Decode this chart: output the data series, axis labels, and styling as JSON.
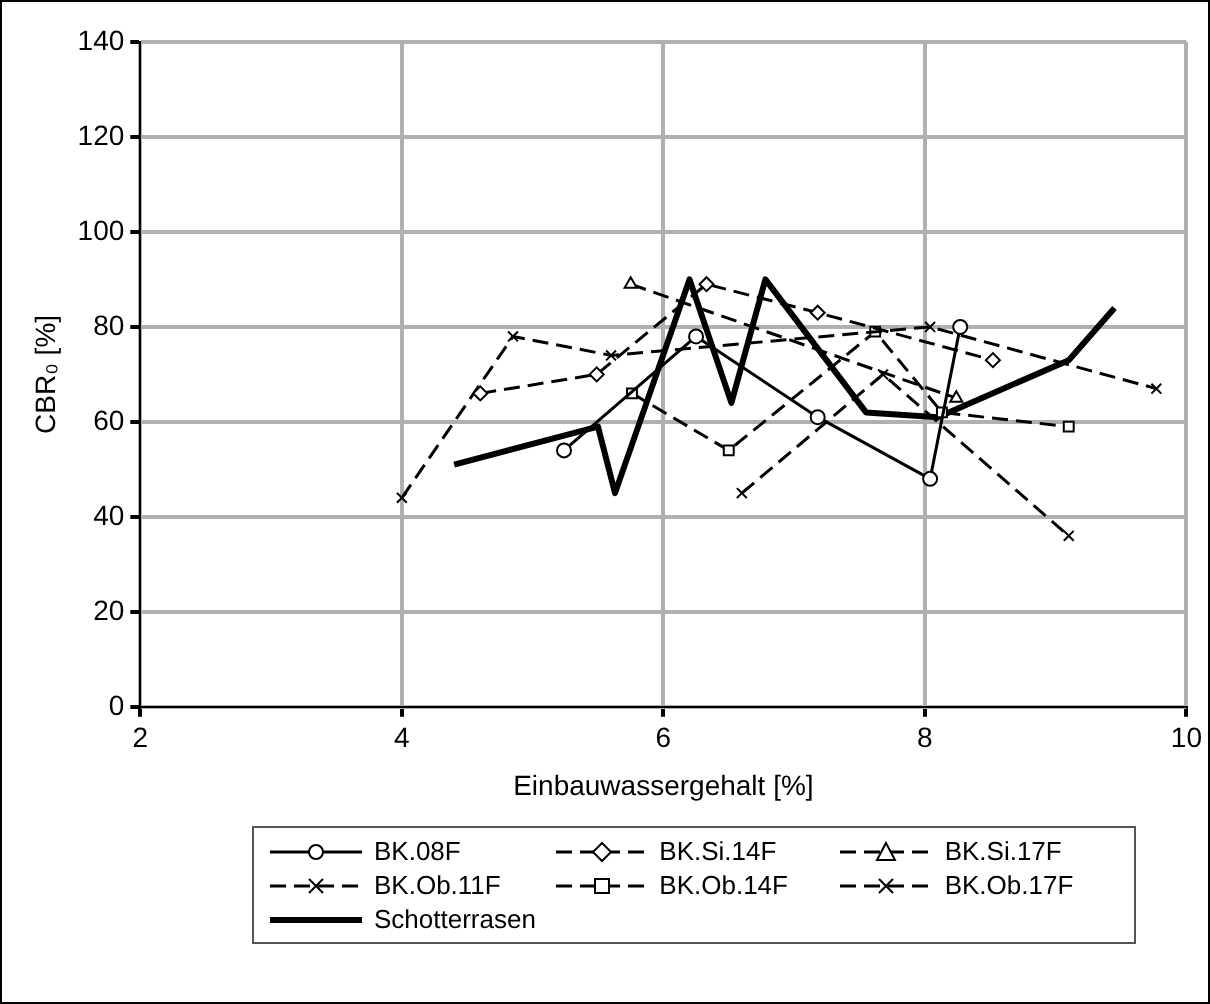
{
  "chart_data": {
    "type": "line",
    "xlabel": "Einbauwassergehalt [%]",
    "ylabel": "CBR₀ [%]",
    "xlim": [
      2,
      10
    ],
    "xticks": [
      2,
      4,
      6,
      8,
      10
    ],
    "ylim": [
      0,
      140
    ],
    "yticks": [
      0,
      20,
      40,
      60,
      80,
      100,
      120,
      140
    ],
    "grid": true,
    "legend": "bottom",
    "series": [
      {
        "name": "BK.08F",
        "color": "#000000",
        "marker": "circle",
        "line_style": "solid",
        "x": [
          5.24,
          6.25,
          7.18,
          8.04,
          8.27
        ],
        "values": [
          54,
          78,
          61,
          48,
          80
        ]
      },
      {
        "name": "BK.Si.14F",
        "color": "#000000",
        "marker": "diamond",
        "line_style": "dashed",
        "x": [
          4.6,
          5.49,
          6.33,
          7.18,
          8.52
        ],
        "values": [
          66,
          70,
          89,
          83,
          73
        ]
      },
      {
        "name": "BK.Si.17F",
        "color": "#000000",
        "marker": "triangle",
        "line_style": "dashed",
        "x": [
          5.75,
          8.24
        ],
        "values": [
          89,
          65
        ]
      },
      {
        "name": "BK.Ob.11F",
        "color": "#000000",
        "marker": "cross",
        "line_style": "dashed",
        "x": [
          4.0,
          4.85,
          5.6,
          8.04,
          9.77
        ],
        "values": [
          44,
          78,
          74,
          80,
          67
        ]
      },
      {
        "name": "BK.Ob.14F",
        "color": "#000000",
        "marker": "square",
        "line_style": "dashed",
        "x": [
          5.76,
          6.5,
          7.62,
          8.13,
          9.1
        ],
        "values": [
          66,
          54,
          79,
          62,
          59
        ]
      },
      {
        "name": "BK.Ob.17F",
        "color": "#000000",
        "marker": "cross",
        "line_style": "dashed",
        "x": [
          6.6,
          7.68,
          9.1
        ],
        "values": [
          45,
          70,
          36
        ]
      },
      {
        "name": "Schotterrasen",
        "color": "#000000",
        "marker": "none",
        "line_style": "solid",
        "x": [
          4.4,
          5.5,
          5.63,
          6.2,
          6.52,
          6.78,
          7.55,
          8.1,
          9.1,
          9.45
        ],
        "values": [
          51,
          59,
          45,
          90,
          64,
          90,
          62,
          61,
          73,
          84
        ]
      }
    ]
  }
}
